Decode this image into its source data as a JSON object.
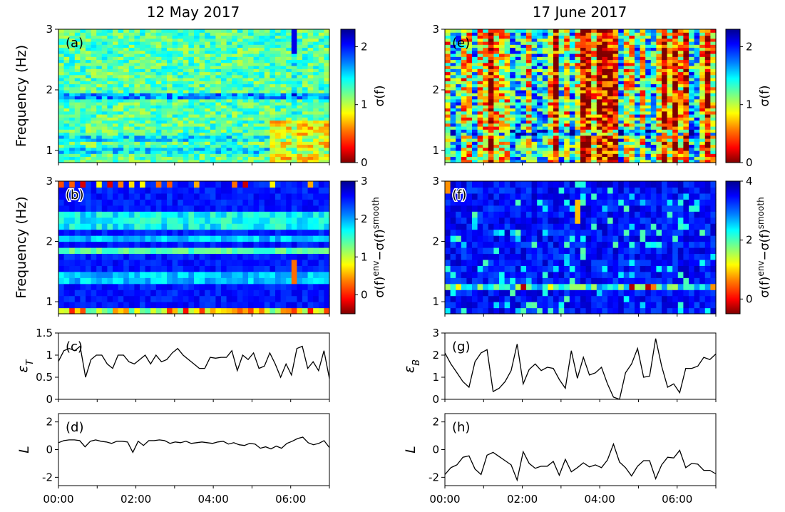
{
  "figure": {
    "column_titles": [
      "12 May 2017",
      "17 June 2017"
    ]
  },
  "colormap": {
    "name": "jet",
    "stops": [
      "#7f0000",
      "#ff0000",
      "#ff7f00",
      "#ffff00",
      "#7fff7f",
      "#00ffff",
      "#007fff",
      "#0000ff",
      "#00008f"
    ]
  },
  "chart_data": [
    {
      "id": "a",
      "type": "heatmap",
      "panel_label": "(a)",
      "title": "12 May 2017",
      "ylabel": "Frequency (Hz)",
      "ylim": [
        0.8,
        3.0
      ],
      "yticks": [
        1,
        2,
        3
      ],
      "x_range": [
        "00:00",
        "07:00"
      ],
      "n_time_bins": 50,
      "n_freq_bins": 44,
      "colorbar": {
        "label": "σ(f)",
        "range": [
          0,
          2.3
        ],
        "ticks": [
          0,
          1,
          2
        ]
      },
      "features": {
        "baseline": 1.05,
        "strong_rows_low_value": [
          1.0,
          1.2,
          1.86,
          1.93
        ],
        "high_value_region": "after 05:20 below 1.5 Hz",
        "spike_at": "06:00"
      }
    },
    {
      "id": "b",
      "type": "heatmap",
      "panel_label": "(b)",
      "ylabel": "Frequency (Hz)",
      "ylim": [
        0.8,
        3.0
      ],
      "yticks": [
        1,
        2,
        3
      ],
      "x_range": [
        "00:00",
        "07:00"
      ],
      "n_time_bins": 50,
      "n_freq_bins": 22,
      "colorbar": {
        "label": "σ(f)env−σ(f)smooth",
        "range": [
          -0.5,
          3.0
        ],
        "ticks": [
          0,
          1,
          2,
          3
        ]
      },
      "features": {
        "bright_rows_hz": [
          0.85,
          1.86,
          2.3,
          2.45
        ],
        "peaks_hz": [
          0.85,
          2.95
        ]
      }
    },
    {
      "id": "c",
      "type": "line",
      "panel_label": "(c)",
      "ylabel": "ε_T",
      "ylim": [
        0,
        1.5
      ],
      "yticks": [
        0,
        0.5,
        1,
        1.5
      ],
      "ytick_labels": [
        "0",
        "0.5",
        "1",
        "1.5"
      ],
      "x_range": [
        "00:00",
        "07:00"
      ],
      "values": [
        0.86,
        1.1,
        1.15,
        1.1,
        1.2,
        0.5,
        0.9,
        1.0,
        1.0,
        0.8,
        0.7,
        1.0,
        1.0,
        0.85,
        0.8,
        0.9,
        1.0,
        0.8,
        1.0,
        0.85,
        0.9,
        1.05,
        1.15,
        1.0,
        0.9,
        0.8,
        0.7,
        0.7,
        0.95,
        0.93,
        0.95,
        0.95,
        1.1,
        0.65,
        1.0,
        0.9,
        1.05,
        0.7,
        0.75,
        1.05,
        0.8,
        0.5,
        0.8,
        0.55,
        1.15,
        1.2,
        0.7,
        0.85,
        0.65,
        1.1,
        0.47
      ]
    },
    {
      "id": "d",
      "type": "line",
      "panel_label": "(d)",
      "ylabel": "L",
      "ylim": [
        -2.6,
        2.6
      ],
      "yticks": [
        -2,
        0,
        2
      ],
      "ytick_labels": [
        "-2",
        "0",
        "2"
      ],
      "x_range": [
        "00:00",
        "07:00"
      ],
      "xticks": [
        "00:00",
        "02:00",
        "04:00",
        "06:00"
      ],
      "values": [
        0.5,
        0.65,
        0.7,
        0.7,
        0.65,
        0.2,
        0.6,
        0.7,
        0.6,
        0.55,
        0.45,
        0.6,
        0.6,
        0.55,
        -0.2,
        0.6,
        0.3,
        0.65,
        0.65,
        0.7,
        0.65,
        0.45,
        0.55,
        0.5,
        0.6,
        0.45,
        0.5,
        0.55,
        0.5,
        0.45,
        0.55,
        0.6,
        0.4,
        0.5,
        0.35,
        0.3,
        0.45,
        0.4,
        0.1,
        0.2,
        0.05,
        0.25,
        0.1,
        0.45,
        0.6,
        0.8,
        0.9,
        0.5,
        0.35,
        0.45,
        0.65,
        0.15
      ]
    },
    {
      "id": "e",
      "type": "heatmap",
      "panel_label": "(e)",
      "title": "17 June 2017",
      "ylim": [
        0.8,
        3.0
      ],
      "yticks": [
        1,
        2,
        3
      ],
      "x_range": [
        "00:00",
        "07:00"
      ],
      "n_time_bins": 50,
      "n_freq_bins": 44,
      "colorbar": {
        "label": "σ(f)",
        "range": [
          0,
          2.3
        ],
        "ticks": [
          0,
          1,
          2
        ]
      },
      "features": {
        "low_value_row_hz": 1.3,
        "low_value_columns": [
          "00:10",
          "00:40",
          "01:45",
          "02:00",
          "02:15",
          "02:40",
          "03:00",
          "04:30",
          "05:15",
          "05:30",
          "06:30",
          "06:45"
        ],
        "high_value_columns": [
          "03:20",
          "03:40",
          "04:10",
          "06:20"
        ]
      }
    },
    {
      "id": "f",
      "type": "heatmap",
      "panel_label": "(f)",
      "ylim": [
        0.8,
        3.0
      ],
      "yticks": [
        1,
        2,
        3
      ],
      "x_range": [
        "00:00",
        "07:00"
      ],
      "n_time_bins": 50,
      "n_freq_bins": 22,
      "colorbar": {
        "label": "σ(f)env−σ(f)smooth",
        "range": [
          -0.5,
          4.0
        ],
        "ticks": [
          0,
          2,
          4
        ]
      },
      "features": {
        "bright_row_hz": 1.25,
        "peaks": [
          [
            "00:05",
            3.0
          ],
          [
            "03:25",
            2.5
          ],
          [
            "01:50",
            1.25
          ],
          [
            "05:15",
            1.25
          ],
          [
            "04:55",
            1.25
          ]
        ]
      }
    },
    {
      "id": "g",
      "type": "line",
      "panel_label": "(g)",
      "ylabel": "ε_B",
      "ylim": [
        0,
        3
      ],
      "yticks": [
        0,
        1,
        2,
        3
      ],
      "ytick_labels": [
        "0",
        "1",
        "2",
        "3"
      ],
      "x_range": [
        "00:00",
        "07:00"
      ],
      "values": [
        2.1,
        1.6,
        1.2,
        0.8,
        0.55,
        1.7,
        2.1,
        2.25,
        0.35,
        0.5,
        0.8,
        1.3,
        2.5,
        0.7,
        1.35,
        1.6,
        1.3,
        1.45,
        1.4,
        0.9,
        0.5,
        2.2,
        0.95,
        1.9,
        1.1,
        1.2,
        1.45,
        0.7,
        0.1,
        0.0,
        1.2,
        1.6,
        2.3,
        1.0,
        1.05,
        2.75,
        1.5,
        0.55,
        0.7,
        0.3,
        1.4,
        1.4,
        1.5,
        1.9,
        1.8,
        2.05
      ],
      "notes": "min near 04:15"
    },
    {
      "id": "h",
      "type": "line",
      "panel_label": "(h)",
      "ylabel": "L",
      "ylim": [
        -2.6,
        2.6
      ],
      "yticks": [
        -2,
        0,
        2
      ],
      "ytick_labels": [
        "-2",
        "0",
        "2"
      ],
      "x_range": [
        "00:00",
        "07:00"
      ],
      "xticks": [
        "00:00",
        "02:00",
        "04:00",
        "06:00"
      ],
      "values": [
        -1.8,
        -1.3,
        -1.1,
        -0.55,
        -0.45,
        -1.4,
        -1.8,
        -0.4,
        -0.2,
        -0.5,
        -0.8,
        -1.1,
        -2.2,
        -0.15,
        -1.0,
        -1.35,
        -1.2,
        -1.2,
        -0.85,
        -1.85,
        -0.7,
        -1.6,
        -1.3,
        -0.95,
        -1.25,
        -1.1,
        -1.3,
        -0.75,
        0.4,
        -0.9,
        -1.3,
        -1.9,
        -1.2,
        -0.8,
        -0.8,
        -2.1,
        -1.1,
        -0.55,
        -0.6,
        -0.05,
        -1.3,
        -1.0,
        -1.05,
        -1.5,
        -1.5,
        -1.75
      ]
    }
  ]
}
